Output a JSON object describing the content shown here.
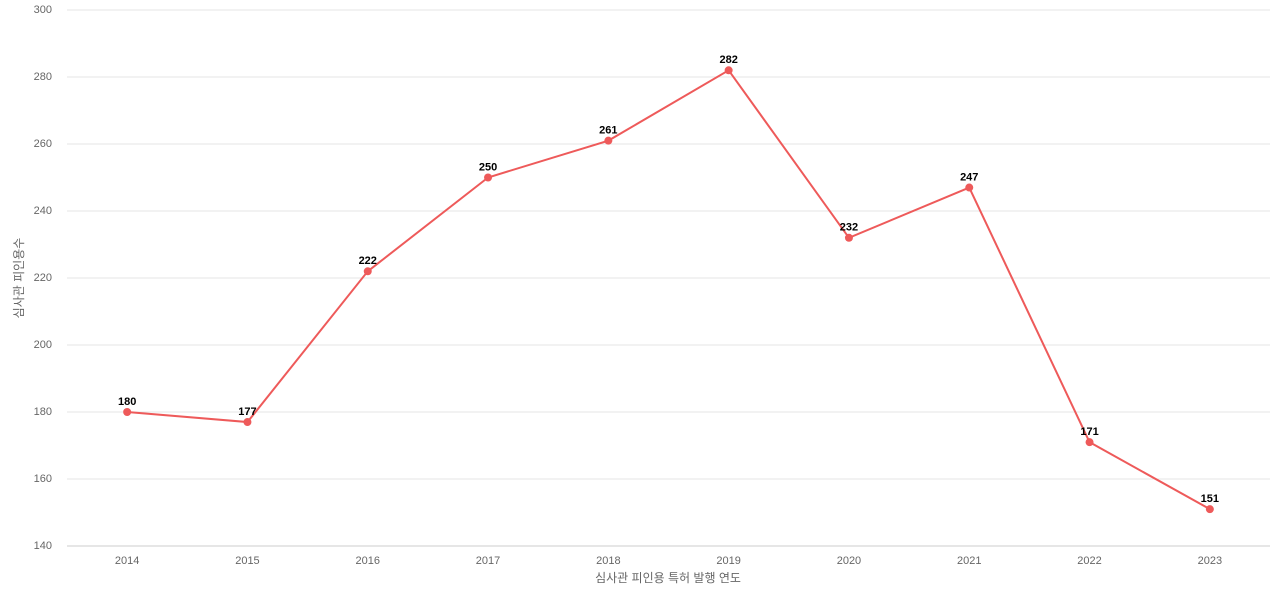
{
  "chart_data": {
    "type": "line",
    "x_label": "심사관 피인용 특허 발행 연도",
    "y_label": "심사관 피인용수",
    "categories": [
      "2014",
      "2015",
      "2016",
      "2017",
      "2018",
      "2019",
      "2020",
      "2021",
      "2022",
      "2023"
    ],
    "values": [
      180,
      177,
      222,
      250,
      261,
      282,
      232,
      247,
      171,
      151
    ],
    "color": "#ee5a5a",
    "ylim": [
      140,
      300
    ],
    "yticks": [
      140,
      160,
      180,
      200,
      220,
      240,
      260,
      280,
      300
    ],
    "grid": true
  }
}
